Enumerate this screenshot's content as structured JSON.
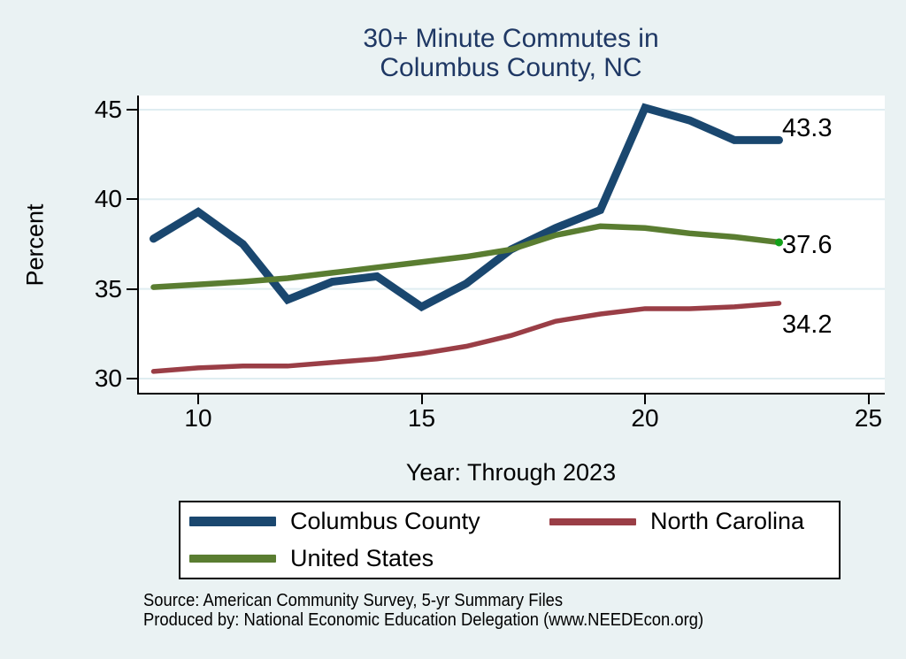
{
  "title": {
    "line1": "30+ Minute Commutes in",
    "line2": "Columbus County, NC"
  },
  "axes": {
    "y_title": "Percent",
    "x_title": "Year: Through 2023",
    "y_ticks": [
      "30",
      "35",
      "40",
      "45"
    ],
    "x_ticks": [
      "10",
      "15",
      "20",
      "25"
    ]
  },
  "chart_data": {
    "type": "line",
    "title": "30+ Minute Commutes in Columbus County, NC",
    "xlabel": "Year: Through 2023",
    "ylabel": "Percent",
    "x": [
      9,
      10,
      11,
      12,
      13,
      14,
      15,
      16,
      17,
      18,
      19,
      20,
      21,
      22,
      23
    ],
    "xlim": [
      8.7,
      25.35
    ],
    "ylim": [
      29.6,
      45.8
    ],
    "grid": true,
    "legend_position": "bottom",
    "series": [
      {
        "name": "Columbus County",
        "color": "#1a476f",
        "line_width": 9,
        "values": [
          37.8,
          39.3,
          37.5,
          34.4,
          35.4,
          35.7,
          34.0,
          35.3,
          37.2,
          38.4,
          39.4,
          45.1,
          44.4,
          43.3,
          43.3
        ],
        "end_label": "43.3",
        "end_label_dy": -13
      },
      {
        "name": "North Carolina",
        "color": "#9a3e46",
        "line_width": 5.5,
        "values": [
          30.4,
          30.6,
          30.7,
          30.7,
          30.9,
          31.1,
          31.4,
          31.8,
          32.4,
          33.2,
          33.6,
          33.9,
          33.9,
          34.0,
          34.2
        ],
        "end_label": "34.2",
        "end_label_dy": 24
      },
      {
        "name": "United States",
        "color": "#5a7d31",
        "line_width": 6.5,
        "values": [
          35.1,
          35.25,
          35.4,
          35.6,
          35.9,
          36.2,
          36.5,
          36.8,
          37.2,
          38.0,
          38.5,
          38.4,
          38.1,
          37.9,
          37.6
        ],
        "end_label": "37.6",
        "end_label_dy": 3,
        "end_marker_color": "#12a119"
      }
    ]
  },
  "legend": {
    "items": [
      {
        "label": "Columbus County",
        "series_index": 0
      },
      {
        "label": "North Carolina",
        "series_index": 1
      },
      {
        "label": "United States",
        "series_index": 2
      }
    ]
  },
  "footer": {
    "source": "Source: American Community Survey, 5-yr Summary Files",
    "produced_by": "Produced by: National Economic Education Delegation (www.NEEDEcon.org)"
  },
  "colors": {
    "background": "#eaf2f3",
    "plot_background": "#ffffff",
    "grid": "#dfedf1",
    "axis": "#000000",
    "title": "#1f3864"
  }
}
